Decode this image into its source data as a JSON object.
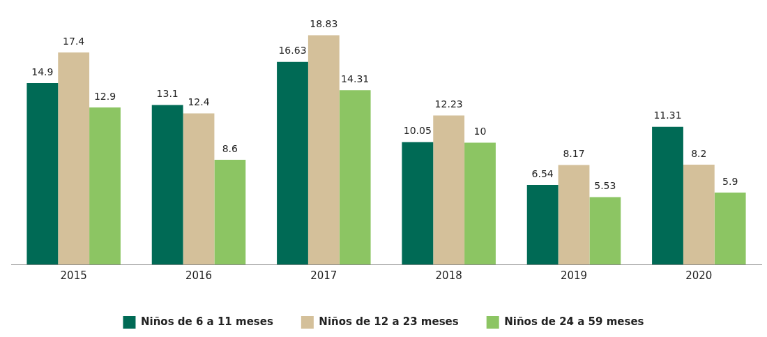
{
  "chart_data": {
    "type": "bar",
    "categories": [
      "2015",
      "2016",
      "2017",
      "2018",
      "2019",
      "2020"
    ],
    "series": [
      {
        "name": "Niños de 6 a 11 meses",
        "color": "#006a55",
        "values": [
          14.9,
          13.1,
          16.63,
          10.05,
          6.54,
          11.31
        ]
      },
      {
        "name": "Niños de 12 a 23 meses",
        "color": "#d4c09a",
        "values": [
          17.4,
          12.4,
          18.83,
          12.23,
          8.17,
          8.2
        ]
      },
      {
        "name": "Niños de 24 a 59 meses",
        "color": "#8cc563",
        "values": [
          12.9,
          8.6,
          14.31,
          10,
          5.53,
          5.9
        ]
      }
    ],
    "tick_labels": "x",
    "grid": false,
    "legend": "bottom",
    "data_labels": true
  }
}
